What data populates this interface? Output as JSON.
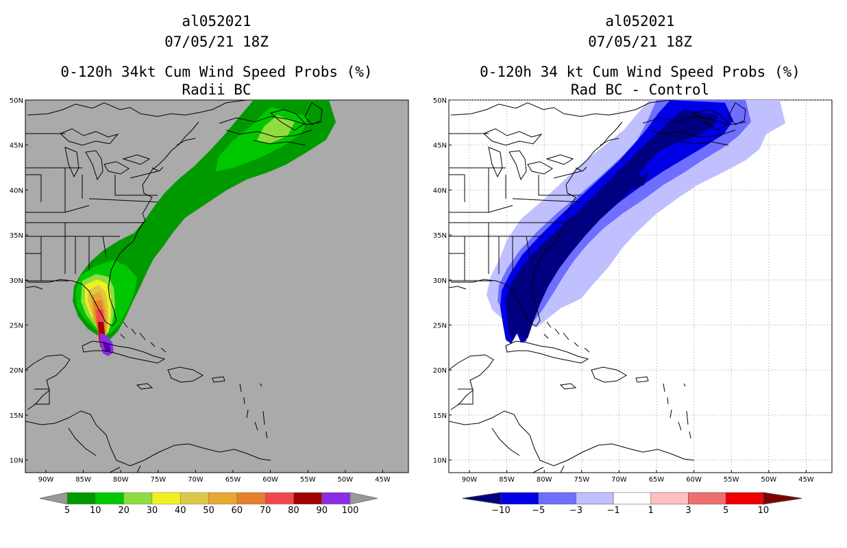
{
  "left_panel": {
    "storm_id": "al052021",
    "datetime": "07/05/21 18Z",
    "title": "0-120h 34kt Cum Wind Speed Probs (%)",
    "subtitle": "Radii BC",
    "background_color": "#aaaaaa",
    "colorbar": {
      "labels": [
        "5",
        "10",
        "20",
        "30",
        "40",
        "50",
        "60",
        "70",
        "80",
        "90",
        "100"
      ],
      "colors": [
        "#009a00",
        "#00c800",
        "#90dc40",
        "#f0f020",
        "#dcc846",
        "#e6a82e",
        "#e67e2a",
        "#f04650",
        "#a00000",
        "#8c2ce6"
      ],
      "end_color": "#999999"
    }
  },
  "right_panel": {
    "storm_id": "al052021",
    "datetime": "07/05/21 18Z",
    "title": "0-120h 34 kt Cum Wind Speed Probs (%)",
    "subtitle": "Rad BC - Control",
    "background_color": "#ffffff",
    "colorbar": {
      "labels": [
        "−10",
        "−5",
        "−3",
        "−1",
        "1",
        "3",
        "5",
        "10"
      ],
      "colors": [
        "#0000e6",
        "#6e6eff",
        "#c0c0ff",
        "#ffffff",
        "#ffc0c0",
        "#f06e6e",
        "#f00000"
      ],
      "low_end_color": "#000080",
      "high_end_color": "#800000"
    }
  },
  "axes": {
    "lon_labels": [
      "90W",
      "85W",
      "80W",
      "75W",
      "70W",
      "65W",
      "60W",
      "55W",
      "50W",
      "45W"
    ],
    "lat_labels": [
      "50N",
      "45N",
      "40N",
      "35N",
      "30N",
      "25N",
      "20N",
      "15N",
      "10N"
    ]
  }
}
